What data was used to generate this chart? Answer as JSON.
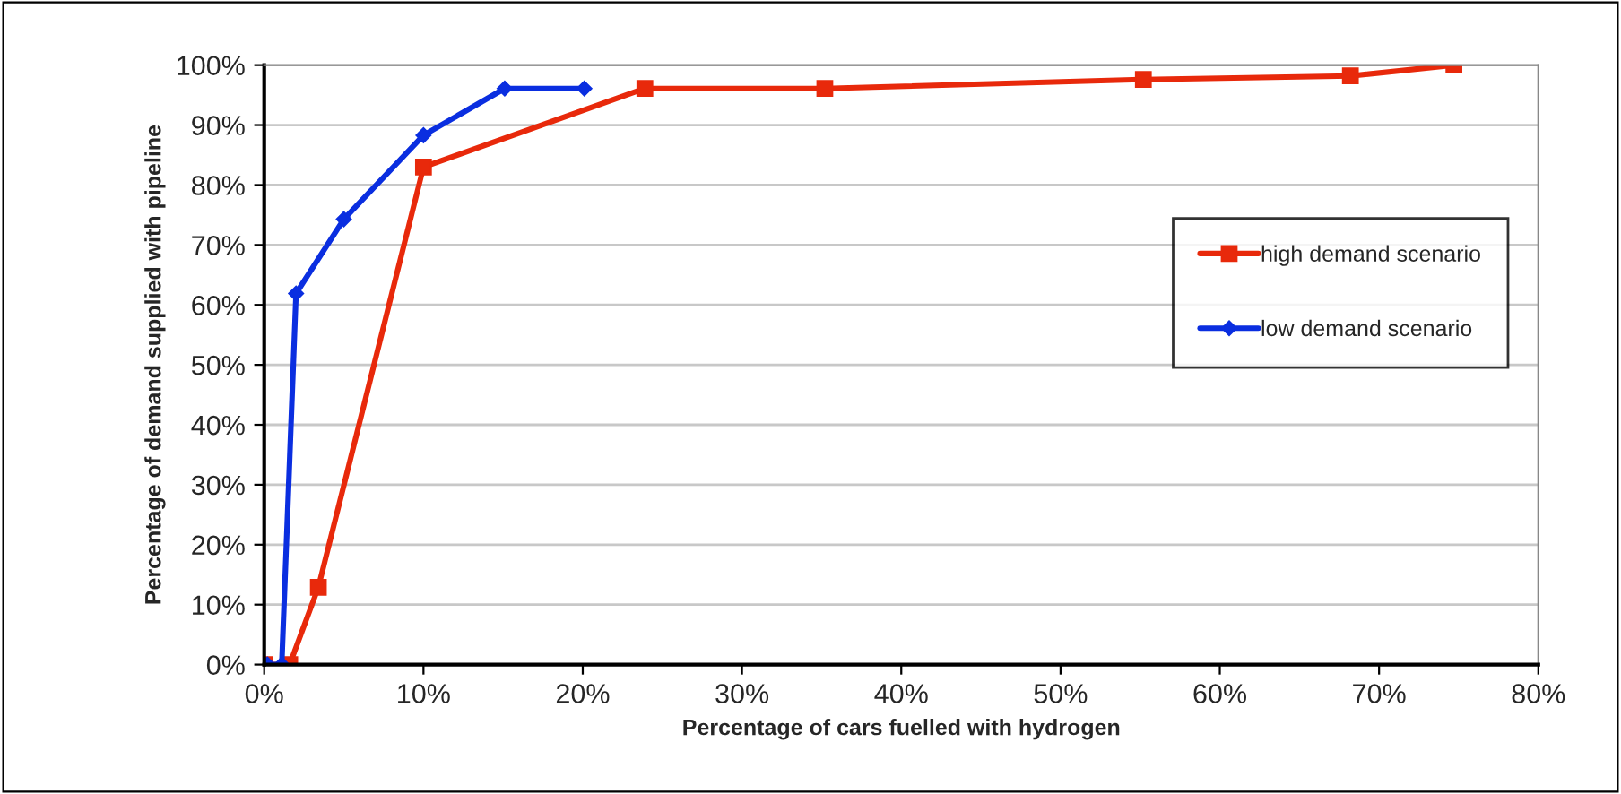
{
  "chart_data": {
    "type": "line",
    "xlabel": "Percentage of cars fuelled with hydrogen",
    "ylabel": "Percentage of demand supplied with pipeline",
    "xlim": [
      0,
      80
    ],
    "ylim": [
      0,
      100
    ],
    "xticks": [
      {
        "value": 0,
        "label": "0%"
      },
      {
        "value": 10,
        "label": "10%"
      },
      {
        "value": 20,
        "label": "20%"
      },
      {
        "value": 30,
        "label": "30%"
      },
      {
        "value": 40,
        "label": "40%"
      },
      {
        "value": 50,
        "label": "50%"
      },
      {
        "value": 60,
        "label": "60%"
      },
      {
        "value": 70,
        "label": "70%"
      },
      {
        "value": 80,
        "label": "80%"
      }
    ],
    "yticks": [
      {
        "value": 0,
        "label": "0%"
      },
      {
        "value": 10,
        "label": "10%"
      },
      {
        "value": 20,
        "label": "20%"
      },
      {
        "value": 30,
        "label": "30%"
      },
      {
        "value": 40,
        "label": "40%"
      },
      {
        "value": 50,
        "label": "50%"
      },
      {
        "value": 60,
        "label": "60%"
      },
      {
        "value": 70,
        "label": "70%"
      },
      {
        "value": 80,
        "label": "80%"
      },
      {
        "value": 90,
        "label": "90%"
      },
      {
        "value": 100,
        "label": "100%"
      }
    ],
    "grid": "y",
    "legend": "right",
    "line_style": "solid",
    "series": [
      {
        "name": "high demand scenario",
        "color": "#e8290b",
        "marker": "square",
        "x": [
          0,
          1.6,
          3.4,
          10,
          23.9,
          35.2,
          55.2,
          68.2,
          74.7
        ],
        "values": [
          0,
          0,
          12.9,
          83,
          96.1,
          96.1,
          97.6,
          98.2,
          100
        ]
      },
      {
        "name": "low demand scenario",
        "color": "#0a2ee0",
        "marker": "diamond",
        "x": [
          0,
          0.2,
          1.1,
          2.0,
          5.0,
          10,
          15.1,
          20.1
        ],
        "values": [
          0,
          0,
          0,
          61.9,
          74.3,
          88.3,
          96.1,
          96.1
        ]
      }
    ]
  }
}
